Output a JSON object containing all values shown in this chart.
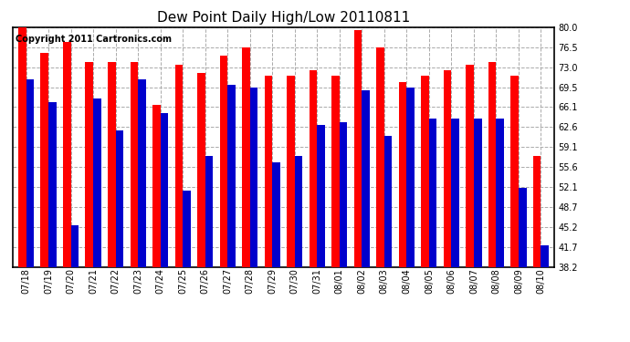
{
  "title": "Dew Point Daily High/Low 20110811",
  "copyright_text": "Copyright 2011 Cartronics.com",
  "categories": [
    "07/18",
    "07/19",
    "07/20",
    "07/21",
    "07/22",
    "07/23",
    "07/24",
    "07/25",
    "07/26",
    "07/27",
    "07/28",
    "07/29",
    "07/30",
    "07/31",
    "08/01",
    "08/02",
    "08/03",
    "08/04",
    "08/05",
    "08/06",
    "08/07",
    "08/08",
    "08/09",
    "08/10"
  ],
  "high_values": [
    80.0,
    75.5,
    77.5,
    74.0,
    74.0,
    74.0,
    66.5,
    73.5,
    72.0,
    75.0,
    76.5,
    71.5,
    71.5,
    72.5,
    71.5,
    79.5,
    76.5,
    70.5,
    71.5,
    72.5,
    73.5,
    74.0,
    71.5,
    57.5
  ],
  "low_values": [
    71.0,
    67.0,
    45.5,
    67.5,
    62.0,
    71.0,
    65.0,
    51.5,
    57.5,
    70.0,
    69.5,
    56.5,
    57.5,
    63.0,
    63.5,
    69.0,
    61.0,
    69.5,
    64.0,
    64.0,
    64.0,
    64.0,
    52.0,
    42.0
  ],
  "high_color": "#ff0000",
  "low_color": "#0000cc",
  "bg_color": "#ffffff",
  "grid_color": "#aaaaaa",
  "ylim_min": 38.2,
  "ylim_max": 80.0,
  "yticks": [
    38.2,
    41.7,
    45.2,
    48.7,
    52.1,
    55.6,
    59.1,
    62.6,
    66.1,
    69.5,
    73.0,
    76.5,
    80.0
  ],
  "title_fontsize": 11,
  "tick_fontsize": 7,
  "copyright_fontsize": 7,
  "bar_width": 0.35,
  "fig_width": 6.9,
  "fig_height": 3.75,
  "dpi": 100
}
